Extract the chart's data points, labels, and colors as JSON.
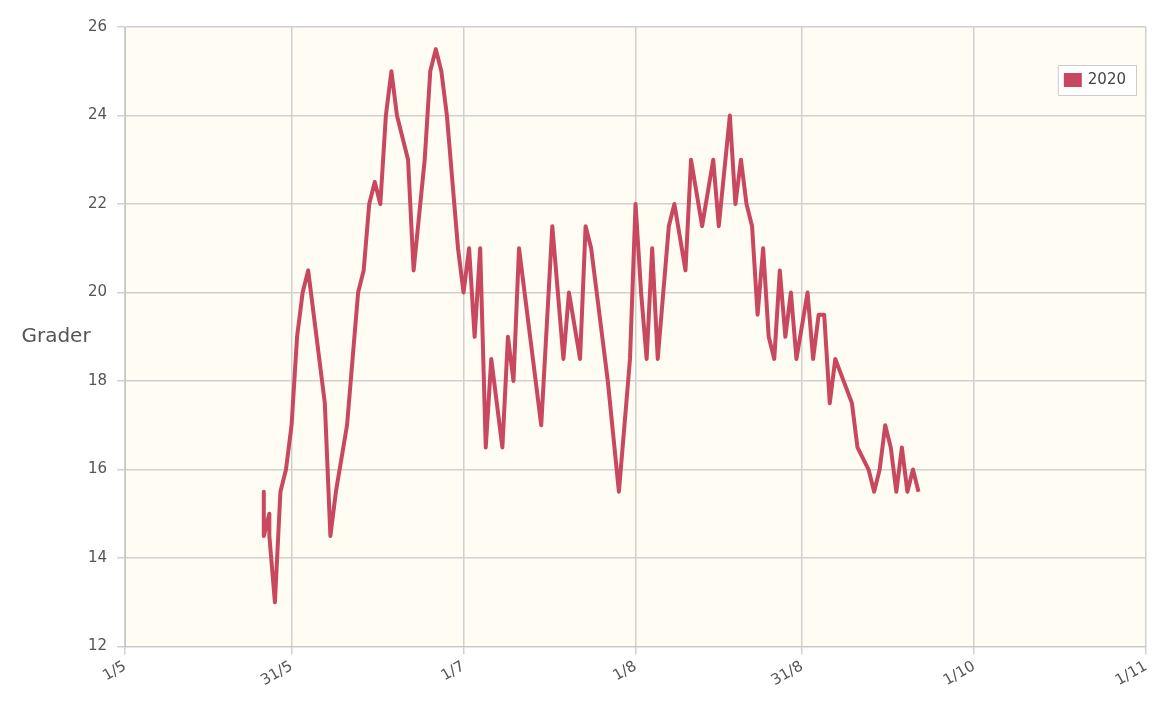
{
  "chart_data": {
    "type": "line",
    "ylabel": "Grader",
    "x": [
      "--05-26",
      "--05-26",
      "--05-27",
      "--05-27",
      "--05-28",
      "--05-29",
      "--05-30",
      "--05-31",
      "--06-01",
      "--06-02",
      "--06-03",
      "--06-04",
      "--06-05",
      "--06-06",
      "--06-07",
      "--06-08",
      "--06-10",
      "--06-11",
      "--06-12",
      "--06-13",
      "--06-14",
      "--06-15",
      "--06-16",
      "--06-17",
      "--06-18",
      "--06-19",
      "--06-21",
      "--06-22",
      "--06-24",
      "--06-25",
      "--06-26",
      "--06-27",
      "--06-28",
      "--06-29",
      "--06-30",
      "--07-01",
      "--07-02",
      "--07-03",
      "--07-04",
      "--07-05",
      "--07-06",
      "--07-08",
      "--07-09",
      "--07-10",
      "--07-11",
      "--07-12",
      "--07-15",
      "--07-17",
      "--07-18",
      "--07-19",
      "--07-20",
      "--07-22",
      "--07-23",
      "--07-24",
      "--07-25",
      "--07-27",
      "--07-29",
      "--07-30",
      "--07-31",
      "--08-01",
      "--08-02",
      "--08-03",
      "--08-04",
      "--08-05",
      "--08-07",
      "--08-08",
      "--08-10",
      "--08-11",
      "--08-13",
      "--08-15",
      "--08-16",
      "--08-18",
      "--08-19",
      "--08-20",
      "--08-21",
      "--08-22",
      "--08-23",
      "--08-24",
      "--08-25",
      "--08-26",
      "--08-27",
      "--08-28",
      "--08-29",
      "--08-30",
      "--09-01",
      "--09-02",
      "--09-03",
      "--09-04",
      "--09-05",
      "--09-06",
      "--09-09",
      "--09-10",
      "--09-12",
      "--09-13",
      "--09-14",
      "--09-15",
      "--09-16",
      "--09-17",
      "--09-18",
      "--09-19",
      "--09-20",
      "--09-21"
    ],
    "series": [
      {
        "name": "2020",
        "color": "#c8485f",
        "values": [
          15.5,
          14.5,
          15.0,
          14.5,
          13.0,
          15.5,
          16.0,
          17.0,
          19.0,
          20.0,
          20.5,
          19.5,
          18.5,
          17.5,
          14.5,
          15.5,
          17.0,
          18.5,
          20.0,
          20.5,
          22.0,
          22.5,
          22.0,
          24.0,
          25.0,
          24.0,
          23.0,
          20.5,
          23.0,
          25.0,
          25.5,
          25.0,
          24.0,
          22.5,
          21.0,
          20.0,
          21.0,
          19.0,
          21.0,
          16.5,
          18.5,
          16.5,
          19.0,
          18.0,
          21.0,
          20.0,
          17.0,
          21.5,
          20.0,
          18.5,
          20.0,
          18.5,
          21.5,
          21.0,
          20.0,
          18.0,
          15.5,
          17.0,
          18.5,
          22.0,
          20.0,
          18.5,
          21.0,
          18.5,
          21.5,
          22.0,
          20.5,
          23.0,
          21.5,
          23.0,
          21.5,
          24.0,
          22.0,
          23.0,
          22.0,
          21.5,
          19.5,
          21.0,
          19.0,
          18.5,
          20.5,
          19.0,
          20.0,
          18.5,
          20.0,
          18.5,
          19.5,
          19.5,
          17.5,
          18.5,
          17.5,
          16.5,
          16.0,
          15.5,
          16.0,
          17.0,
          16.5,
          15.5,
          16.5,
          15.5,
          16.0,
          15.5
        ]
      }
    ],
    "xlim": [
      "--05-01",
      "--11-01"
    ],
    "xticks": [
      {
        "value": "--05-01",
        "label": "1/5"
      },
      {
        "value": "--05-31",
        "label": "31/5"
      },
      {
        "value": "--07-01",
        "label": "1/7"
      },
      {
        "value": "--08-01",
        "label": "1/8"
      },
      {
        "value": "--08-31",
        "label": "31/8"
      },
      {
        "value": "--10-01",
        "label": "1/10"
      },
      {
        "value": "--11-01",
        "label": "1/11"
      }
    ],
    "ylim": [
      12,
      26
    ],
    "yticks": [
      12,
      14,
      16,
      18,
      20,
      22,
      24,
      26
    ],
    "grid": true,
    "legend": "top right",
    "marker": "none",
    "line_style": "solid"
  }
}
